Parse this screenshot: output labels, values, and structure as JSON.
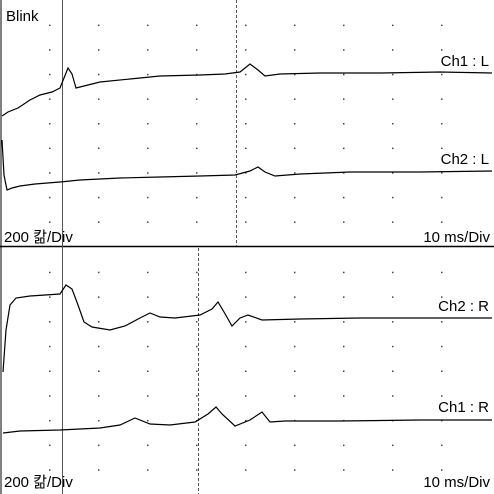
{
  "top_panel": {
    "title": "Blink",
    "traces": [
      "Ch1 : L",
      "Ch2 : L"
    ],
    "amplitude_scale": "200 칾/Div",
    "time_scale": "10 ms/Div"
  },
  "bottom_panel": {
    "traces": [
      "Ch2 : R",
      "Ch1 : R"
    ],
    "amplitude_scale": "200 칾/Div",
    "time_scale": "10 ms/Div"
  }
}
